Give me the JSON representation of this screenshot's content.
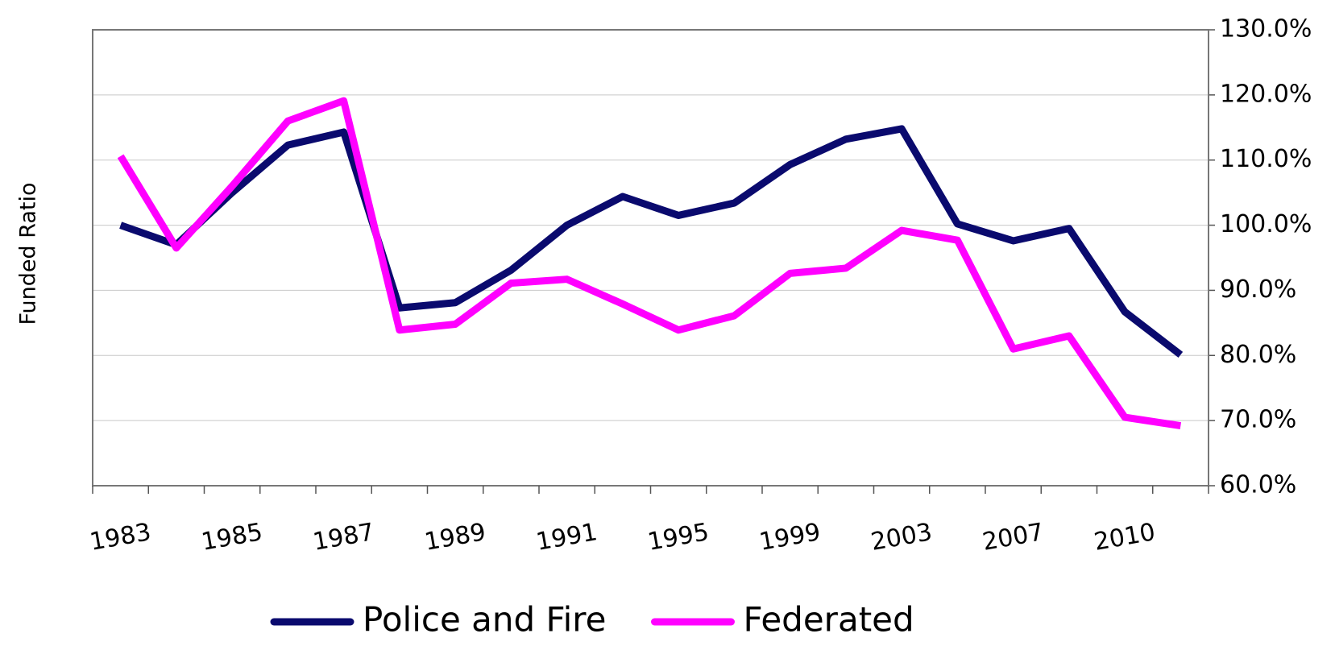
{
  "chart_data": {
    "type": "line",
    "y_axis_label": "Funded Ratio",
    "categories": [
      "1983",
      null,
      "1985",
      null,
      "1987",
      null,
      "1989",
      null,
      "1991",
      null,
      "1995",
      null,
      "1999",
      null,
      "2003",
      null,
      "2007",
      null,
      "2010",
      null
    ],
    "series": [
      {
        "name": "Police and Fire",
        "color": "#0a0a6e",
        "values": [
          100,
          97,
          105,
          112.3,
          114.3,
          87.3,
          88.1,
          93.1,
          100,
          104.4,
          101.5,
          103.4,
          109.3,
          113.2,
          114.8,
          100.2,
          97.6,
          99.5,
          86.7,
          80.1
        ]
      },
      {
        "name": "Federated",
        "color": "#ff00ff",
        "values": [
          110.6,
          96.5,
          106,
          116,
          119.1,
          83.9,
          84.8,
          91.1,
          91.7,
          87.9,
          83.9,
          86.1,
          92.6,
          93.4,
          99.2,
          97.7,
          81,
          83,
          70.5,
          69.2
        ]
      }
    ],
    "ylim": [
      60,
      130
    ],
    "yticks": [
      {
        "value": 60,
        "label": "60.0%"
      },
      {
        "value": 70,
        "label": "70.0%"
      },
      {
        "value": 80,
        "label": "80.0%"
      },
      {
        "value": 90,
        "label": "90.0%"
      },
      {
        "value": 100,
        "label": "100.0%"
      },
      {
        "value": 110,
        "label": "110.0%"
      },
      {
        "value": 120,
        "label": "120.0%"
      },
      {
        "value": 130,
        "label": "130.0%"
      }
    ],
    "y_axis_side": "right",
    "grid": true,
    "legend": "bottom"
  }
}
